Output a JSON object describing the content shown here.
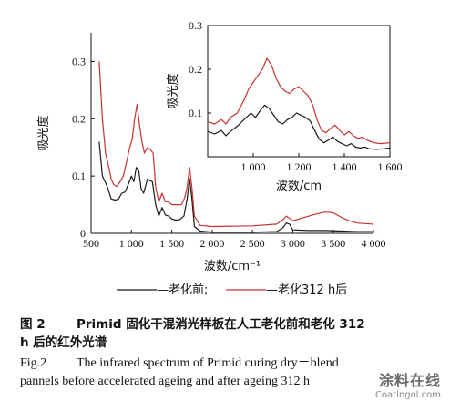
{
  "chart_data": [
    {
      "type": "line",
      "id": "main",
      "xlabel": "波数/cm⁻¹",
      "ylabel": "吸光度",
      "xlim": [
        500,
        4000
      ],
      "ylim": [
        0,
        0.35
      ],
      "xticks": [
        {
          "v": 500,
          "label": "500"
        },
        {
          "v": 1000,
          "label": "1 000"
        },
        {
          "v": 1500,
          "label": "1 500"
        },
        {
          "v": 2000,
          "label": "2 000"
        },
        {
          "v": 2500,
          "label": "2 500"
        },
        {
          "v": 3000,
          "label": "3 000"
        },
        {
          "v": 3500,
          "label": "3 500"
        },
        {
          "v": 4000,
          "label": "4 000"
        }
      ],
      "yticks": [
        {
          "v": 0,
          "label": "0"
        },
        {
          "v": 0.1,
          "label": "0.1"
        },
        {
          "v": 0.2,
          "label": "0.2"
        },
        {
          "v": 0.3,
          "label": "0.3"
        }
      ],
      "series": [
        {
          "name": "老化前",
          "color": "#1a1a1a",
          "points": [
            [
              600,
              0.16
            ],
            [
              640,
              0.1
            ],
            [
              700,
              0.082
            ],
            [
              750,
              0.06
            ],
            [
              800,
              0.058
            ],
            [
              840,
              0.06
            ],
            [
              880,
              0.07
            ],
            [
              920,
              0.072
            ],
            [
              960,
              0.085
            ],
            [
              1000,
              0.1
            ],
            [
              1030,
              0.09
            ],
            [
              1060,
              0.115
            ],
            [
              1090,
              0.11
            ],
            [
              1120,
              0.078
            ],
            [
              1150,
              0.07
            ],
            [
              1200,
              0.095
            ],
            [
              1230,
              0.092
            ],
            [
              1260,
              0.09
            ],
            [
              1300,
              0.05
            ],
            [
              1340,
              0.03
            ],
            [
              1380,
              0.045
            ],
            [
              1420,
              0.032
            ],
            [
              1460,
              0.03
            ],
            [
              1500,
              0.025
            ],
            [
              1550,
              0.023
            ],
            [
              1600,
              0.024
            ],
            [
              1650,
              0.03
            ],
            [
              1690,
              0.06
            ],
            [
              1720,
              0.095
            ],
            [
              1750,
              0.06
            ],
            [
              1780,
              0.012
            ],
            [
              1850,
              0.004
            ],
            [
              2000,
              0.002
            ],
            [
              2500,
              0.002
            ],
            [
              2800,
              0.003
            ],
            [
              2880,
              0.01
            ],
            [
              2920,
              0.018
            ],
            [
              2960,
              0.016
            ],
            [
              3000,
              0.006
            ],
            [
              3200,
              0.005
            ],
            [
              3400,
              0.005
            ],
            [
              3600,
              0.004
            ],
            [
              3800,
              0.003
            ],
            [
              4000,
              0.003
            ]
          ]
        },
        {
          "name": "老化312 h后",
          "color": "#c83232",
          "points": [
            [
              600,
              0.3
            ],
            [
              640,
              0.2
            ],
            [
              680,
              0.14
            ],
            [
              720,
              0.115
            ],
            [
              750,
              0.095
            ],
            [
              780,
              0.085
            ],
            [
              820,
              0.082
            ],
            [
              860,
              0.09
            ],
            [
              900,
              0.1
            ],
            [
              940,
              0.125
            ],
            [
              980,
              0.15
            ],
            [
              1010,
              0.165
            ],
            [
              1040,
              0.2
            ],
            [
              1070,
              0.225
            ],
            [
              1100,
              0.19
            ],
            [
              1130,
              0.16
            ],
            [
              1160,
              0.14
            ],
            [
              1200,
              0.15
            ],
            [
              1240,
              0.145
            ],
            [
              1270,
              0.14
            ],
            [
              1300,
              0.08
            ],
            [
              1340,
              0.055
            ],
            [
              1380,
              0.07
            ],
            [
              1420,
              0.055
            ],
            [
              1460,
              0.055
            ],
            [
              1500,
              0.05
            ],
            [
              1560,
              0.05
            ],
            [
              1620,
              0.05
            ],
            [
              1660,
              0.062
            ],
            [
              1690,
              0.08
            ],
            [
              1720,
              0.115
            ],
            [
              1750,
              0.08
            ],
            [
              1780,
              0.03
            ],
            [
              1850,
              0.014
            ],
            [
              2000,
              0.012
            ],
            [
              2500,
              0.013
            ],
            [
              2800,
              0.016
            ],
            [
              2880,
              0.024
            ],
            [
              2920,
              0.03
            ],
            [
              2960,
              0.026
            ],
            [
              3000,
              0.022
            ],
            [
              3100,
              0.026
            ],
            [
              3200,
              0.03
            ],
            [
              3300,
              0.034
            ],
            [
              3400,
              0.037
            ],
            [
              3500,
              0.036
            ],
            [
              3600,
              0.028
            ],
            [
              3700,
              0.022
            ],
            [
              3800,
              0.018
            ],
            [
              3900,
              0.017
            ],
            [
              4000,
              0.016
            ]
          ]
        }
      ]
    },
    {
      "type": "line",
      "id": "inset",
      "xlabel": "波数/cm",
      "ylabel": "吸光度",
      "xlim": [
        800,
        1600
      ],
      "ylim": [
        0,
        0.3
      ],
      "xticks": [
        {
          "v": 1000,
          "label": "1 000"
        },
        {
          "v": 1200,
          "label": "1 200"
        },
        {
          "v": 1400,
          "label": "1 400"
        },
        {
          "v": 1600,
          "label": "1 600"
        }
      ],
      "yticks": [
        {
          "v": 0.1,
          "label": "0.1"
        },
        {
          "v": 0.2,
          "label": "0.2"
        },
        {
          "v": 0.3,
          "label": "0.3"
        }
      ],
      "series": [
        {
          "name": "老化前",
          "color": "#1a1a1a",
          "points": [
            [
              800,
              0.058
            ],
            [
              830,
              0.052
            ],
            [
              860,
              0.06
            ],
            [
              880,
              0.048
            ],
            [
              900,
              0.058
            ],
            [
              930,
              0.07
            ],
            [
              960,
              0.085
            ],
            [
              990,
              0.1
            ],
            [
              1010,
              0.09
            ],
            [
              1030,
              0.105
            ],
            [
              1050,
              0.118
            ],
            [
              1070,
              0.11
            ],
            [
              1090,
              0.095
            ],
            [
              1110,
              0.08
            ],
            [
              1130,
              0.075
            ],
            [
              1150,
              0.085
            ],
            [
              1170,
              0.09
            ],
            [
              1190,
              0.1
            ],
            [
              1210,
              0.095
            ],
            [
              1230,
              0.09
            ],
            [
              1250,
              0.082
            ],
            [
              1270,
              0.06
            ],
            [
              1290,
              0.04
            ],
            [
              1310,
              0.032
            ],
            [
              1330,
              0.038
            ],
            [
              1350,
              0.045
            ],
            [
              1370,
              0.035
            ],
            [
              1390,
              0.03
            ],
            [
              1410,
              0.025
            ],
            [
              1430,
              0.03
            ],
            [
              1450,
              0.022
            ],
            [
              1470,
              0.02
            ],
            [
              1490,
              0.022
            ],
            [
              1510,
              0.018
            ],
            [
              1540,
              0.017
            ],
            [
              1570,
              0.018
            ],
            [
              1600,
              0.02
            ]
          ]
        },
        {
          "name": "老化312 h后",
          "color": "#c83232",
          "points": [
            [
              800,
              0.08
            ],
            [
              830,
              0.075
            ],
            [
              860,
              0.085
            ],
            [
              880,
              0.075
            ],
            [
              900,
              0.09
            ],
            [
              930,
              0.1
            ],
            [
              960,
              0.13
            ],
            [
              980,
              0.155
            ],
            [
              1000,
              0.17
            ],
            [
              1020,
              0.185
            ],
            [
              1040,
              0.2
            ],
            [
              1060,
              0.225
            ],
            [
              1080,
              0.21
            ],
            [
              1100,
              0.18
            ],
            [
              1120,
              0.16
            ],
            [
              1140,
              0.15
            ],
            [
              1160,
              0.145
            ],
            [
              1180,
              0.155
            ],
            [
              1200,
              0.16
            ],
            [
              1220,
              0.15
            ],
            [
              1240,
              0.14
            ],
            [
              1260,
              0.12
            ],
            [
              1280,
              0.085
            ],
            [
              1300,
              0.06
            ],
            [
              1320,
              0.055
            ],
            [
              1340,
              0.065
            ],
            [
              1360,
              0.072
            ],
            [
              1380,
              0.06
            ],
            [
              1400,
              0.05
            ],
            [
              1420,
              0.058
            ],
            [
              1440,
              0.048
            ],
            [
              1460,
              0.042
            ],
            [
              1480,
              0.045
            ],
            [
              1500,
              0.038
            ],
            [
              1530,
              0.032
            ],
            [
              1560,
              0.03
            ],
            [
              1600,
              0.032
            ]
          ]
        }
      ]
    }
  ],
  "legend": {
    "before_label": "—老化前;",
    "after_label": "—老化312 h后"
  },
  "caption": {
    "cn_label": "图 2",
    "cn_text": "Primid 固化干混消光样板在人工老化前和老化 312",
    "cn_text_2": "h 后的红外光谱",
    "en_label": "Fig.2",
    "en_text": "The infrared spectrum of Primid curing dry－blend",
    "en_text_2": "pannels before accelerated ageing and after ageing 312 h"
  },
  "watermark": {
    "cn": "涂料在线",
    "en": "Coatingol.com"
  }
}
